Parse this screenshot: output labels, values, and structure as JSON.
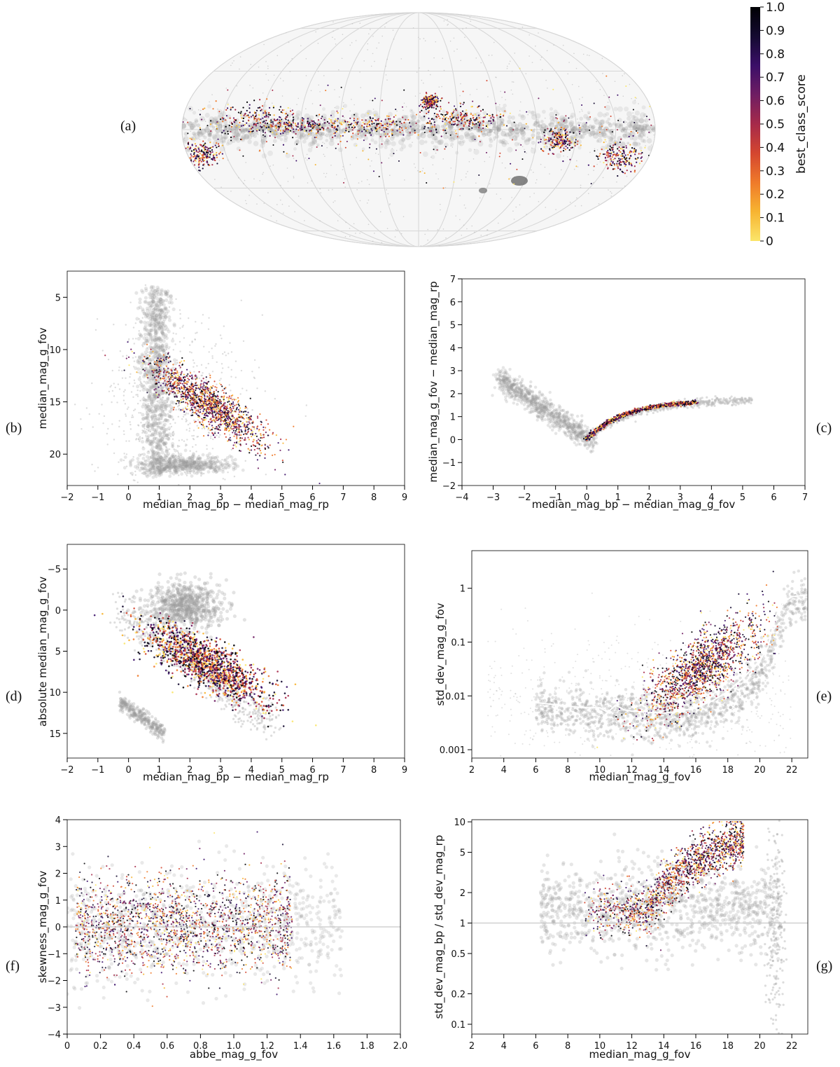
{
  "figure": {
    "colormap": [
      "#fbe56a",
      "#f7b431",
      "#ef7a2a",
      "#d4462f",
      "#a62a4a",
      "#6f1d63",
      "#3b0f68",
      "#140a30",
      "#000004"
    ],
    "background_color": "#9a9a9a"
  },
  "colorbar": {
    "label": "best_class_score",
    "ticks": [
      "1.0",
      "0.9",
      "0.8",
      "0.7",
      "0.6",
      "0.5",
      "0.4",
      "0.3",
      "0.2",
      "0.1",
      "0"
    ]
  },
  "chart_data": [
    {
      "id": "a",
      "panel_label": "(a)",
      "type": "scatter",
      "projection": "mollweide",
      "title": "",
      "xlabel": "",
      "ylabel": "",
      "note": "sky map: grey density of all sources, coloured points of candidates concentrated along galactic plane"
    },
    {
      "id": "b",
      "panel_label": "(b)",
      "type": "scatter",
      "xlabel": "median_mag_bp − median_mag_rp",
      "ylabel": "median_mag_g_fov",
      "xlim": [
        -2,
        9
      ],
      "ylim": [
        23,
        2.5
      ],
      "yinvert": true,
      "xticks": [
        -2,
        -1,
        0,
        1,
        2,
        3,
        4,
        5,
        6,
        7,
        8,
        9
      ],
      "yticks": [
        5,
        10,
        15,
        20
      ],
      "candidates": {
        "x_center": 2.6,
        "y_center": 15.2,
        "x_spread": 0.9,
        "y_spread": 2.0,
        "slope": 2.2
      }
    },
    {
      "id": "c",
      "panel_label": "(c)",
      "type": "scatter",
      "xlabel": "median_mag_bp − median_mag_g_fov",
      "ylabel": "median_mag_g_fov − median_mag_rp",
      "xlim": [
        -4,
        7
      ],
      "ylim": [
        -2,
        7
      ],
      "xticks": [
        -4,
        -3,
        -2,
        -1,
        0,
        1,
        2,
        3,
        4,
        5,
        6,
        7
      ],
      "yticks": [
        -2,
        -1,
        0,
        1,
        2,
        3,
        4,
        5,
        6,
        7
      ],
      "candidates": {
        "x_range": [
          0,
          3.5
        ],
        "y_range": [
          0,
          1.6
        ]
      }
    },
    {
      "id": "d",
      "panel_label": "(d)",
      "type": "scatter",
      "xlabel": "median_mag_bp − median_mag_rp",
      "ylabel": "absolute median_mag_g_fov",
      "xlim": [
        -2,
        9
      ],
      "ylim": [
        18,
        -8
      ],
      "yinvert": true,
      "xticks": [
        -2,
        -1,
        0,
        1,
        2,
        3,
        4,
        5,
        6,
        7,
        8,
        9
      ],
      "yticks": [
        -5,
        0,
        5,
        10,
        15
      ],
      "candidates": {
        "x_center": 2.5,
        "y_center": 6.5,
        "x_spread": 1.0,
        "y_spread": 2.6,
        "slope": 2.0
      }
    },
    {
      "id": "e",
      "panel_label": "(e)",
      "type": "scatter",
      "yscale": "log",
      "xlabel": "median_mag_g_fov",
      "ylabel": "std_dev_mag_g_fov",
      "xlim": [
        2,
        23
      ],
      "ylim": [
        0.0007,
        5
      ],
      "xticks": [
        2,
        4,
        6,
        8,
        10,
        12,
        14,
        16,
        18,
        20,
        22
      ],
      "yticks": [
        0.001,
        0.01,
        0.1,
        1
      ],
      "ytick_labels": [
        "0.001",
        "0.01",
        "0.1",
        "1"
      ],
      "median_curve": {
        "x": [
          6,
          7,
          8,
          9,
          10,
          10.5,
          11,
          11.5,
          12,
          13,
          14,
          15,
          16,
          17,
          18,
          19,
          20,
          20.5,
          21,
          21.5,
          22,
          23
        ],
        "y": [
          0.0075,
          0.007,
          0.0065,
          0.006,
          0.006,
          0.005,
          0.0068,
          0.0055,
          0.0052,
          0.005,
          0.0048,
          0.0052,
          0.006,
          0.008,
          0.012,
          0.022,
          0.045,
          0.08,
          0.3,
          0.55,
          0.7,
          0.75
        ]
      },
      "candidates": {
        "x_center": 16.3,
        "y_center": 0.05,
        "x_spread": 1.7
      }
    },
    {
      "id": "f",
      "panel_label": "(f)",
      "type": "scatter",
      "xlabel": "abbe_mag_g_fov",
      "ylabel": "skewness_mag_g_fov",
      "xlim": [
        0,
        2.0
      ],
      "ylim": [
        -4,
        4
      ],
      "xticks": [
        0,
        0.2,
        0.4,
        0.6,
        0.8,
        1.0,
        1.2,
        1.4,
        1.6,
        1.8,
        2.0
      ],
      "xtick_labels": [
        "0",
        "0.2",
        "0.4",
        "0.6",
        "0.8",
        "1.0",
        "1.2",
        "1.4",
        "1.6",
        "1.8",
        "2.0"
      ],
      "yticks": [
        -4,
        -3,
        -2,
        -1,
        0,
        1,
        2,
        3,
        4
      ],
      "hline": 0,
      "candidates": {
        "x_range": [
          0.05,
          1.35
        ],
        "y_center": 0.1
      }
    },
    {
      "id": "g",
      "panel_label": "(g)",
      "type": "scatter",
      "yscale": "log",
      "xlabel": "median_mag_g_fov",
      "ylabel": "std_dev_mag_bp / std_dev_mag_rp",
      "xlim": [
        2,
        23
      ],
      "ylim": [
        0.08,
        10.5
      ],
      "xticks": [
        2,
        4,
        6,
        8,
        10,
        12,
        14,
        16,
        18,
        20,
        22
      ],
      "yticks": [
        0.1,
        0.2,
        0.5,
        1,
        2,
        5,
        10
      ],
      "ytick_labels": [
        "0.1",
        "0.2",
        "0.5",
        "1",
        "2",
        "5",
        "10"
      ],
      "hline": 1,
      "candidates": {
        "x_range": [
          9,
          19
        ],
        "y_range": [
          1.2,
          10
        ]
      }
    }
  ]
}
